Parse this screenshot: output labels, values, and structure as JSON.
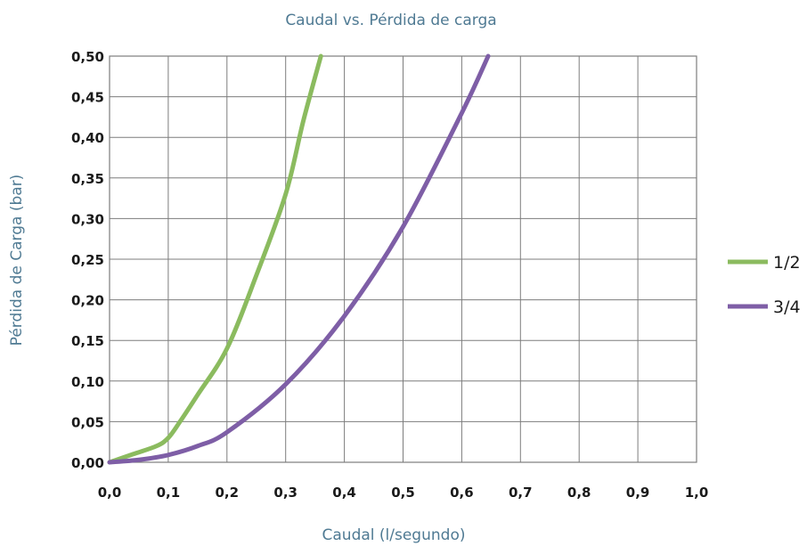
{
  "chart_data": {
    "type": "line",
    "title": "Caudal vs. Pérdida de carga",
    "xlabel": "Caudal (l/segundo)",
    "ylabel": "Pérdida de Carga (bar)",
    "xlim": [
      0.0,
      1.0
    ],
    "ylim": [
      0.0,
      0.5
    ],
    "x_ticks": [
      "0,0",
      "0,1",
      "0,2",
      "0,3",
      "0,4",
      "0,5",
      "0,6",
      "0,7",
      "0,8",
      "0,9",
      "1,0"
    ],
    "y_ticks": [
      "0,00",
      "0,05",
      "0,10",
      "0,15",
      "0,20",
      "0,25",
      "0,30",
      "0,35",
      "0,40",
      "0,45",
      "0,50"
    ],
    "grid": true,
    "legend_position": "right",
    "series": [
      {
        "name": "1/2",
        "color": "#8bbb5f",
        "x": [
          0.0,
          0.04,
          0.08,
          0.1,
          0.12,
          0.15,
          0.2,
          0.25,
          0.3,
          0.33,
          0.36
        ],
        "y": [
          0.0,
          0.01,
          0.02,
          0.03,
          0.05,
          0.083,
          0.14,
          0.23,
          0.33,
          0.42,
          0.5
        ]
      },
      {
        "name": "3/4",
        "color": "#7e5ea6",
        "x": [
          0.0,
          0.05,
          0.1,
          0.15,
          0.2,
          0.3,
          0.4,
          0.5,
          0.6,
          0.645
        ],
        "y": [
          0.0,
          0.003,
          0.009,
          0.02,
          0.037,
          0.096,
          0.18,
          0.29,
          0.43,
          0.5
        ]
      }
    ]
  }
}
